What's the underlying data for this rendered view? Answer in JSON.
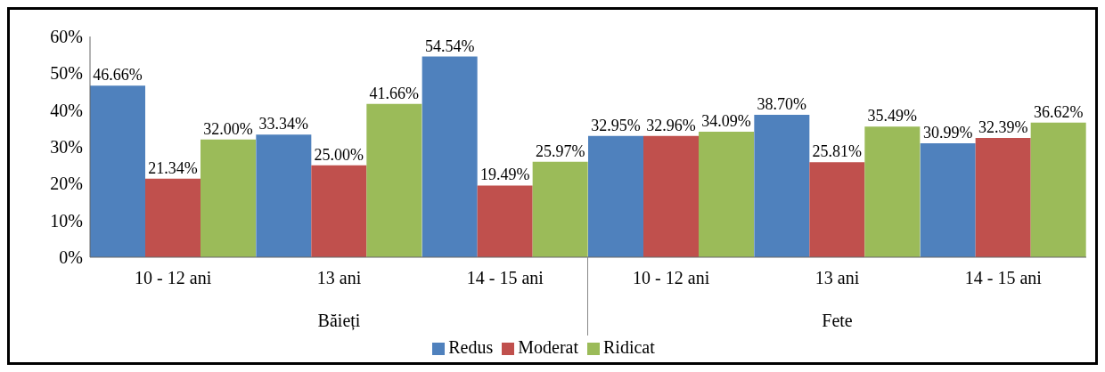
{
  "chart_data": {
    "type": "bar",
    "categories": [
      "10 - 12 ani",
      "13 ani",
      "14 - 15 ani",
      "10 - 12 ani",
      "13 ani",
      "14 - 15 ani"
    ],
    "annotations": [
      "Băieți",
      "Fete"
    ],
    "series": [
      {
        "name": "Redus",
        "color": "#4f81bd",
        "values": [
          46.66,
          33.34,
          54.54,
          32.95,
          38.7,
          30.99
        ],
        "value_labels": [
          "46.66%",
          "33.34%",
          "54.54%",
          "32.95%",
          "38.70%",
          "30.99%"
        ]
      },
      {
        "name": "Moderat",
        "color": "#c0504d",
        "values": [
          21.34,
          25.0,
          19.49,
          32.96,
          25.81,
          32.39
        ],
        "value_labels": [
          "21.34%",
          "25.00%",
          "19.49%",
          "32.96%",
          "25.81%",
          "32.39%"
        ]
      },
      {
        "name": "Ridicat",
        "color": "#9bbb59",
        "values": [
          32.0,
          41.66,
          25.97,
          34.09,
          35.49,
          36.62
        ],
        "value_labels": [
          "32.00%",
          "41.66%",
          "25.97%",
          "34.09%",
          "35.49%",
          "36.62%"
        ]
      }
    ],
    "ylim": [
      0,
      60
    ],
    "yticks": [
      {
        "value": 0,
        "label": "0%"
      },
      {
        "value": 10,
        "label": "10%"
      },
      {
        "value": 20,
        "label": "20%"
      },
      {
        "value": 30,
        "label": "30%"
      },
      {
        "value": 40,
        "label": "40%"
      },
      {
        "value": 50,
        "label": "50%"
      },
      {
        "value": 60,
        "label": "60%"
      }
    ],
    "grid": false,
    "legend": "bottom"
  }
}
